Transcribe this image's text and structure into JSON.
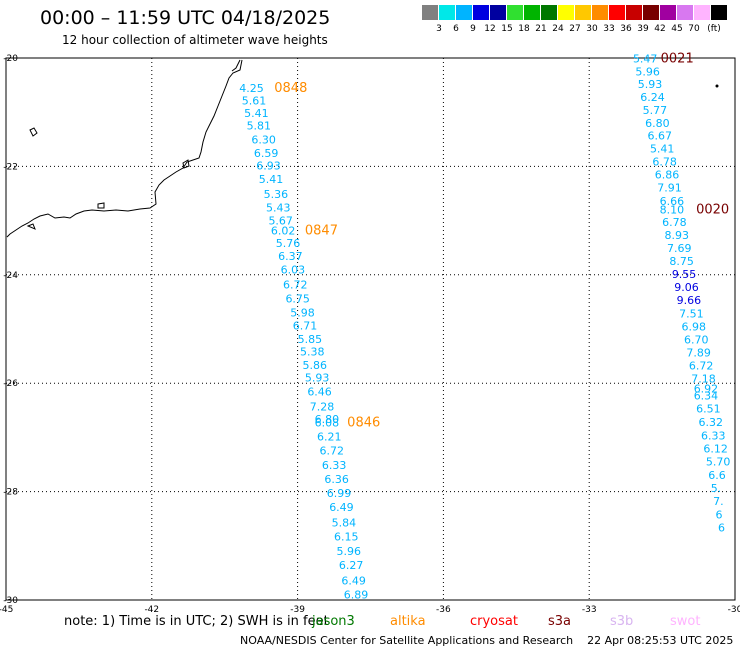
{
  "header": {
    "title": "00:00 – 11:59 UTC 04/18/2025",
    "subtitle": "12 hour collection of altimeter wave heights"
  },
  "legend": {
    "unit": "(ft)",
    "items": [
      {
        "color": "#808080",
        "label": ""
      },
      {
        "color": "#00e8e8",
        "label": "3"
      },
      {
        "color": "#00b4ff",
        "label": "6"
      },
      {
        "color": "#0000e0",
        "label": "9"
      },
      {
        "color": "#0000a0",
        "label": "12"
      },
      {
        "color": "#30e030",
        "label": "15"
      },
      {
        "color": "#00b400",
        "label": "18"
      },
      {
        "color": "#007800",
        "label": "21"
      },
      {
        "color": "#ffff00",
        "label": "24"
      },
      {
        "color": "#ffc800",
        "label": "27"
      },
      {
        "color": "#ff8c00",
        "label": "30"
      },
      {
        "color": "#ff0000",
        "label": "33"
      },
      {
        "color": "#c80000",
        "label": "36"
      },
      {
        "color": "#780000",
        "label": "39"
      },
      {
        "color": "#a000a0",
        "label": "42"
      },
      {
        "color": "#d878f0",
        "label": "45"
      },
      {
        "color": "#ffb4ff",
        "label": "70"
      },
      {
        "color": "#000000",
        "label": ""
      }
    ]
  },
  "axes": {
    "y_ticks": [
      {
        "value": -20,
        "label": "-20"
      },
      {
        "value": -22,
        "label": "-22"
      },
      {
        "value": -24,
        "label": "-24"
      },
      {
        "value": -26,
        "label": "-26"
      },
      {
        "value": -28,
        "label": "-28"
      },
      {
        "value": -30,
        "label": "-30"
      }
    ],
    "x_ticks": [
      {
        "value": -45,
        "label": "-45"
      },
      {
        "value": -42,
        "label": "-42"
      },
      {
        "value": -39,
        "label": "-39"
      },
      {
        "value": -36,
        "label": "-36"
      },
      {
        "value": -33,
        "label": "-33"
      },
      {
        "value": -30,
        "label": "-30"
      }
    ],
    "lon_range": [
      -45,
      -30
    ],
    "lat_range": [
      -30,
      -20
    ]
  },
  "tracks": {
    "west": [
      {
        "lon": -40.2,
        "lat": -20.63,
        "v": "4.25"
      },
      {
        "lon": -40.15,
        "lat": -20.86,
        "v": "5.61"
      },
      {
        "lon": -40.1,
        "lat": -21.09,
        "v": "5.41"
      },
      {
        "lon": -40.05,
        "lat": -21.32,
        "v": "5.81"
      },
      {
        "lon": -39.95,
        "lat": -21.58,
        "v": "6.30"
      },
      {
        "lon": -39.9,
        "lat": -21.83,
        "v": "6.59"
      },
      {
        "lon": -39.85,
        "lat": -22.06,
        "v": "6.93"
      },
      {
        "lon": -39.8,
        "lat": -22.31,
        "v": "5.41"
      },
      {
        "lon": -39.7,
        "lat": -22.58,
        "v": "5.36"
      },
      {
        "lon": -39.65,
        "lat": -22.83,
        "v": "5.43"
      },
      {
        "lon": -39.6,
        "lat": -23.07,
        "v": "5.67"
      },
      {
        "lon": -39.55,
        "lat": -23.26,
        "v": "6.02"
      },
      {
        "lon": -39.45,
        "lat": -23.49,
        "v": "5.76"
      },
      {
        "lon": -39.4,
        "lat": -23.73,
        "v": "6.37"
      },
      {
        "lon": -39.35,
        "lat": -23.98,
        "v": "6.03"
      },
      {
        "lon": -39.3,
        "lat": -24.25,
        "v": "6.72"
      },
      {
        "lon": -39.25,
        "lat": -24.51,
        "v": "6.75"
      },
      {
        "lon": -39.15,
        "lat": -24.77,
        "v": "5.98"
      },
      {
        "lon": -39.1,
        "lat": -25.01,
        "v": "6.71"
      },
      {
        "lon": -39.0,
        "lat": -25.26,
        "v": "5.85"
      },
      {
        "lon": -38.95,
        "lat": -25.49,
        "v": "5.38"
      },
      {
        "lon": -38.9,
        "lat": -25.74,
        "v": "5.86"
      },
      {
        "lon": -38.85,
        "lat": -25.97,
        "v": "5.93"
      },
      {
        "lon": -38.8,
        "lat": -26.23,
        "v": "6.46"
      },
      {
        "lon": -38.75,
        "lat": -26.5,
        "v": "7.28"
      },
      {
        "lon": -38.65,
        "lat": -26.73,
        "v": "6.80"
      },
      {
        "lon": -38.65,
        "lat": -26.8,
        "v": "6.08"
      },
      {
        "lon": -38.6,
        "lat": -27.06,
        "v": "6.21"
      },
      {
        "lon": -38.55,
        "lat": -27.32,
        "v": "6.72"
      },
      {
        "lon": -38.5,
        "lat": -27.58,
        "v": "6.33"
      },
      {
        "lon": -38.45,
        "lat": -27.84,
        "v": "6.36"
      },
      {
        "lon": -38.4,
        "lat": -28.1,
        "v": "6.99"
      },
      {
        "lon": -38.35,
        "lat": -28.36,
        "v": "6.49"
      },
      {
        "lon": -38.3,
        "lat": -28.64,
        "v": "5.84"
      },
      {
        "lon": -38.25,
        "lat": -28.9,
        "v": "6.15"
      },
      {
        "lon": -38.2,
        "lat": -29.17,
        "v": "5.96"
      },
      {
        "lon": -38.15,
        "lat": -29.43,
        "v": "6.27"
      },
      {
        "lon": -38.1,
        "lat": -29.71,
        "v": "6.49"
      },
      {
        "lon": -38.05,
        "lat": -29.97,
        "v": "6.89"
      }
    ],
    "east": [
      {
        "lon": -32.1,
        "lat": -20.08,
        "v": "5.47"
      },
      {
        "lon": -32.05,
        "lat": -20.32,
        "v": "5.96"
      },
      {
        "lon": -32.0,
        "lat": -20.55,
        "v": "5.93"
      },
      {
        "lon": -31.95,
        "lat": -20.79,
        "v": "6.24"
      },
      {
        "lon": -31.9,
        "lat": -21.03,
        "v": "5.77"
      },
      {
        "lon": -31.85,
        "lat": -21.27,
        "v": "6.80"
      },
      {
        "lon": -31.8,
        "lat": -21.5,
        "v": "6.67"
      },
      {
        "lon": -31.75,
        "lat": -21.74,
        "v": "5.41"
      },
      {
        "lon": -31.7,
        "lat": -21.98,
        "v": "6.78"
      },
      {
        "lon": -31.65,
        "lat": -22.22,
        "v": "6.86"
      },
      {
        "lon": -31.6,
        "lat": -22.46,
        "v": "7.91"
      },
      {
        "lon": -31.55,
        "lat": -22.71,
        "v": "6.66"
      },
      {
        "lon": -31.55,
        "lat": -22.87,
        "v": "8.10"
      },
      {
        "lon": -31.5,
        "lat": -23.1,
        "v": "6.78"
      },
      {
        "lon": -31.45,
        "lat": -23.34,
        "v": "8.93"
      },
      {
        "lon": -31.4,
        "lat": -23.58,
        "v": "7.69"
      },
      {
        "lon": -31.35,
        "lat": -23.82,
        "v": "8.75"
      },
      {
        "lon": -31.3,
        "lat": -24.06,
        "v": "9.55",
        "c": "#0000e0"
      },
      {
        "lon": -31.25,
        "lat": -24.3,
        "v": "9.06",
        "c": "#0000e0"
      },
      {
        "lon": -31.2,
        "lat": -24.54,
        "v": "9.66",
        "c": "#0000e0"
      },
      {
        "lon": -31.15,
        "lat": -24.79,
        "v": "7.51"
      },
      {
        "lon": -31.1,
        "lat": -25.03,
        "v": "6.98"
      },
      {
        "lon": -31.05,
        "lat": -25.27,
        "v": "6.70"
      },
      {
        "lon": -31.0,
        "lat": -25.51,
        "v": "7.89"
      },
      {
        "lon": -30.95,
        "lat": -25.75,
        "v": "6.72"
      },
      {
        "lon": -30.9,
        "lat": -25.99,
        "v": "7.18"
      },
      {
        "lon": -30.85,
        "lat": -26.17,
        "v": "6.92"
      },
      {
        "lon": -30.85,
        "lat": -26.3,
        "v": "6.34"
      },
      {
        "lon": -30.8,
        "lat": -26.54,
        "v": "6.51"
      },
      {
        "lon": -30.75,
        "lat": -26.79,
        "v": "6.32"
      },
      {
        "lon": -30.7,
        "lat": -27.04,
        "v": "6.33"
      },
      {
        "lon": -30.65,
        "lat": -27.28,
        "v": "6.12"
      },
      {
        "lon": -30.6,
        "lat": -27.52,
        "v": "5.70"
      },
      {
        "lon": -30.55,
        "lat": -27.77,
        "v": "6.6"
      },
      {
        "lon": -30.5,
        "lat": -28.01,
        "v": "5."
      },
      {
        "lon": -30.45,
        "lat": -28.25,
        "v": "7."
      },
      {
        "lon": -30.4,
        "lat": -28.5,
        "v": "6"
      },
      {
        "lon": -30.35,
        "lat": -28.74,
        "v": "6"
      }
    ]
  },
  "pass_labels": [
    {
      "text": "0848",
      "lon": -39.48,
      "lat": -20.63,
      "color": "#ff8c00"
    },
    {
      "text": "0847",
      "lon": -38.85,
      "lat": -23.26,
      "color": "#ff8c00"
    },
    {
      "text": "0846",
      "lon": -37.98,
      "lat": -26.8,
      "color": "#ff8c00"
    },
    {
      "text": "0021",
      "lon": -31.53,
      "lat": -20.08,
      "color": "#780000"
    },
    {
      "text": "0020",
      "lon": -30.8,
      "lat": -22.87,
      "color": "#780000"
    }
  ],
  "footer": {
    "note": "note: 1) Time is in UTC; 2) SWH is in feet",
    "missions": [
      {
        "text": "jason3",
        "color": "#007800"
      },
      {
        "text": "altika",
        "color": "#ff8c00"
      },
      {
        "text": "cryosat",
        "color": "#ff0000"
      },
      {
        "text": "s3a",
        "color": "#780000"
      },
      {
        "text": "s3b",
        "color": "#d8b4f0"
      },
      {
        "text": "swot",
        "color": "#ffb4ff"
      }
    ],
    "credit": "NOAA/NESDIS Center for Satellite Applications and Research    22 Apr 08:25:53 UTC 2025"
  },
  "colors": {
    "track_value": "#00b4ff",
    "track_value_light": "#00e8e8",
    "coast": "#000000"
  }
}
